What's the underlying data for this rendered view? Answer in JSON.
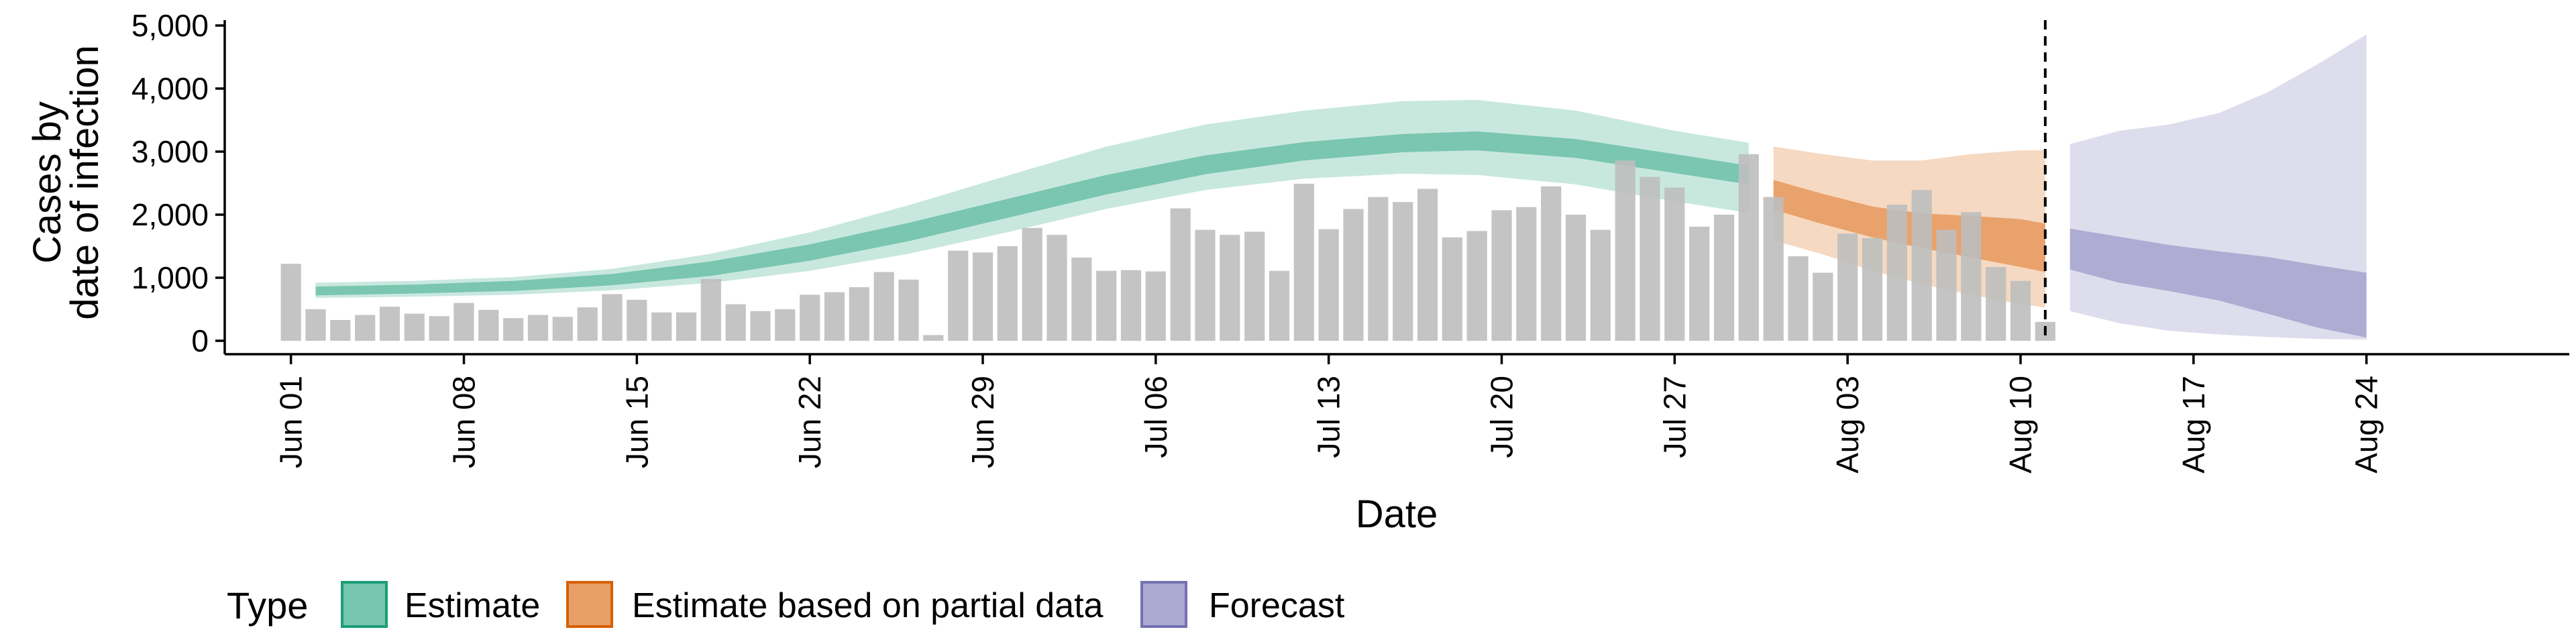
{
  "chart_data": {
    "type": "bar",
    "xlabel": "Date",
    "ylabel": [
      "Cases by",
      "date of infection"
    ],
    "ylim": [
      0,
      5000
    ],
    "yticks": [
      0,
      1000,
      2000,
      3000,
      4000,
      5000
    ],
    "ytick_labels": [
      "0",
      "1,000",
      "2,000",
      "3,000",
      "4,000",
      "5,000"
    ],
    "xlim": [
      "2020-05-30",
      "2020-08-28"
    ],
    "xticks": [
      {
        "date": "2020-06-01",
        "label": "Jun 01"
      },
      {
        "date": "2020-06-08",
        "label": "Jun 08"
      },
      {
        "date": "2020-06-15",
        "label": "Jun 15"
      },
      {
        "date": "2020-06-22",
        "label": "Jun 22"
      },
      {
        "date": "2020-06-29",
        "label": "Jun 29"
      },
      {
        "date": "2020-07-06",
        "label": "Jul 06"
      },
      {
        "date": "2020-07-13",
        "label": "Jul 13"
      },
      {
        "date": "2020-07-20",
        "label": "Jul 20"
      },
      {
        "date": "2020-07-27",
        "label": "Jul 27"
      },
      {
        "date": "2020-08-03",
        "label": "Aug 03"
      },
      {
        "date": "2020-08-10",
        "label": "Aug 10"
      },
      {
        "date": "2020-08-17",
        "label": "Aug 17"
      },
      {
        "date": "2020-08-24",
        "label": "Aug 24"
      }
    ],
    "bar_color": "#bebebe",
    "bars": {
      "dates": [
        "2020-06-01",
        "2020-06-02",
        "2020-06-03",
        "2020-06-04",
        "2020-06-05",
        "2020-06-06",
        "2020-06-07",
        "2020-06-08",
        "2020-06-09",
        "2020-06-10",
        "2020-06-11",
        "2020-06-12",
        "2020-06-13",
        "2020-06-14",
        "2020-06-15",
        "2020-06-16",
        "2020-06-17",
        "2020-06-18",
        "2020-06-19",
        "2020-06-20",
        "2020-06-21",
        "2020-06-22",
        "2020-06-23",
        "2020-06-24",
        "2020-06-25",
        "2020-06-26",
        "2020-06-27",
        "2020-06-28",
        "2020-06-29",
        "2020-06-30",
        "2020-07-01",
        "2020-07-02",
        "2020-07-03",
        "2020-07-04",
        "2020-07-05",
        "2020-07-06",
        "2020-07-07",
        "2020-07-08",
        "2020-07-09",
        "2020-07-10",
        "2020-07-11",
        "2020-07-12",
        "2020-07-13",
        "2020-07-14",
        "2020-07-15",
        "2020-07-16",
        "2020-07-17",
        "2020-07-18",
        "2020-07-19",
        "2020-07-20",
        "2020-07-21",
        "2020-07-22",
        "2020-07-23",
        "2020-07-24",
        "2020-07-25",
        "2020-07-26",
        "2020-07-27",
        "2020-07-28",
        "2020-07-29",
        "2020-07-30",
        "2020-07-31",
        "2020-08-01",
        "2020-08-02",
        "2020-08-03",
        "2020-08-04",
        "2020-08-05",
        "2020-08-06",
        "2020-08-07",
        "2020-08-08",
        "2020-08-09",
        "2020-08-10",
        "2020-08-11"
      ],
      "values": [
        1220,
        500,
        330,
        410,
        540,
        430,
        390,
        600,
        490,
        360,
        410,
        380,
        530,
        740,
        650,
        450,
        450,
        980,
        580,
        470,
        500,
        730,
        770,
        850,
        1090,
        970,
        90,
        1430,
        1400,
        1500,
        1790,
        1680,
        1320,
        1110,
        1120,
        1100,
        2100,
        1760,
        1680,
        1730,
        1110,
        2490,
        1770,
        2090,
        2280,
        2200,
        2410,
        1640,
        1740,
        2070,
        2120,
        2450,
        2000,
        1760,
        2860,
        2600,
        2430,
        1810,
        2000,
        2960,
        2280,
        1340,
        1080,
        1700,
        1630,
        2160,
        2390,
        1760,
        2040,
        1170,
        950,
        300
      ]
    },
    "series": [
      {
        "name": "Estimate",
        "color": "#1b9e77",
        "dates": [
          "2020-06-02",
          "2020-06-06",
          "2020-06-10",
          "2020-06-14",
          "2020-06-18",
          "2020-06-22",
          "2020-06-26",
          "2020-06-30",
          "2020-07-04",
          "2020-07-08",
          "2020-07-12",
          "2020-07-16",
          "2020-07-19",
          "2020-07-23",
          "2020-07-27",
          "2020-07-30"
        ],
        "outer_upper": [
          920,
          950,
          1010,
          1140,
          1380,
          1720,
          2150,
          2620,
          3080,
          3430,
          3650,
          3800,
          3820,
          3650,
          3330,
          3140
        ],
        "inner_upper": [
          860,
          890,
          950,
          1060,
          1260,
          1530,
          1870,
          2250,
          2630,
          2940,
          3150,
          3280,
          3320,
          3200,
          2960,
          2780
        ],
        "inner_lower": [
          720,
          750,
          790,
          880,
          1030,
          1270,
          1580,
          1950,
          2320,
          2640,
          2860,
          2990,
          3020,
          2900,
          2660,
          2480
        ],
        "outer_lower": [
          680,
          700,
          730,
          800,
          920,
          1110,
          1380,
          1720,
          2090,
          2390,
          2570,
          2650,
          2630,
          2480,
          2210,
          2030
        ]
      },
      {
        "name": "Estimate based on partial data",
        "color": "#d95f02",
        "dates": [
          "2020-07-31",
          "2020-08-02",
          "2020-08-04",
          "2020-08-06",
          "2020-08-08",
          "2020-08-10",
          "2020-08-11"
        ],
        "outer_upper": [
          3080,
          2960,
          2860,
          2860,
          2960,
          3020,
          3020
        ],
        "inner_upper": [
          2550,
          2330,
          2130,
          2020,
          1980,
          1930,
          1860
        ],
        "inner_lower": [
          2080,
          1850,
          1640,
          1470,
          1320,
          1170,
          1090
        ],
        "outer_lower": [
          1590,
          1370,
          1110,
          900,
          730,
          580,
          530
        ]
      },
      {
        "name": "Forecast",
        "color": "#7570b3",
        "dates": [
          "2020-08-12",
          "2020-08-14",
          "2020-08-16",
          "2020-08-18",
          "2020-08-20",
          "2020-08-22",
          "2020-08-24"
        ],
        "outer_upper": [
          3120,
          3330,
          3430,
          3610,
          3940,
          4380,
          4860
        ],
        "inner_upper": [
          1780,
          1650,
          1520,
          1420,
          1330,
          1200,
          1080
        ],
        "inner_lower": [
          1130,
          920,
          790,
          640,
          430,
          210,
          50
        ],
        "outer_lower": [
          470,
          280,
          160,
          100,
          60,
          30,
          20
        ]
      }
    ],
    "vline": {
      "date": "2020-08-11",
      "style": "dashed"
    },
    "legend": {
      "title": "Type",
      "position": "bottom",
      "entries": [
        {
          "label": "Estimate",
          "color": "#1b9e77"
        },
        {
          "label": "Estimate based on partial data",
          "color": "#d95f02"
        },
        {
          "label": "Forecast",
          "color": "#7570b3"
        }
      ]
    },
    "grid": false
  }
}
